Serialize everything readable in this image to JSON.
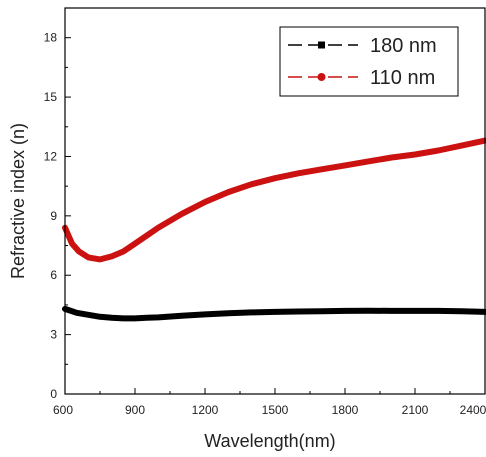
{
  "chart_data": {
    "type": "line",
    "xlabel": "Wavelength(nm)",
    "ylabel": "Refractive index (n)",
    "xlim": [
      600,
      2400
    ],
    "ylim": [
      0,
      19.5
    ],
    "x_ticks": [
      "600",
      "900",
      "1200",
      "1500",
      "1800",
      "2100",
      "2400"
    ],
    "y_ticks": [
      "0",
      "3",
      "6",
      "9",
      "12",
      "15",
      "18"
    ],
    "x_tick_values": [
      600,
      900,
      1200,
      1500,
      1800,
      2100,
      2400
    ],
    "y_tick_values": [
      0,
      3,
      6,
      9,
      12,
      15,
      18
    ],
    "legend_position": "top-right",
    "series": [
      {
        "name": "180 nm",
        "color": "#000000",
        "marker": "square",
        "x": [
          600,
          650,
          700,
          750,
          800,
          850,
          900,
          950,
          1000,
          1100,
          1200,
          1300,
          1400,
          1500,
          1600,
          1700,
          1800,
          1900,
          2000,
          2100,
          2200,
          2300,
          2400
        ],
        "y": [
          4.3,
          4.1,
          4.0,
          3.9,
          3.85,
          3.82,
          3.82,
          3.85,
          3.87,
          3.95,
          4.02,
          4.08,
          4.12,
          4.15,
          4.17,
          4.18,
          4.2,
          4.21,
          4.2,
          4.2,
          4.2,
          4.18,
          4.15
        ]
      },
      {
        "name": "110 nm",
        "color": "#cc1111",
        "marker": "circle",
        "x": [
          600,
          630,
          660,
          700,
          750,
          800,
          850,
          900,
          950,
          1000,
          1100,
          1200,
          1300,
          1400,
          1500,
          1600,
          1700,
          1800,
          1900,
          2000,
          2100,
          2200,
          2300,
          2400
        ],
        "y": [
          8.4,
          7.6,
          7.2,
          6.9,
          6.8,
          6.95,
          7.2,
          7.6,
          8.0,
          8.4,
          9.1,
          9.7,
          10.2,
          10.6,
          10.9,
          11.15,
          11.35,
          11.55,
          11.75,
          11.95,
          12.1,
          12.3,
          12.55,
          12.8
        ]
      }
    ]
  }
}
